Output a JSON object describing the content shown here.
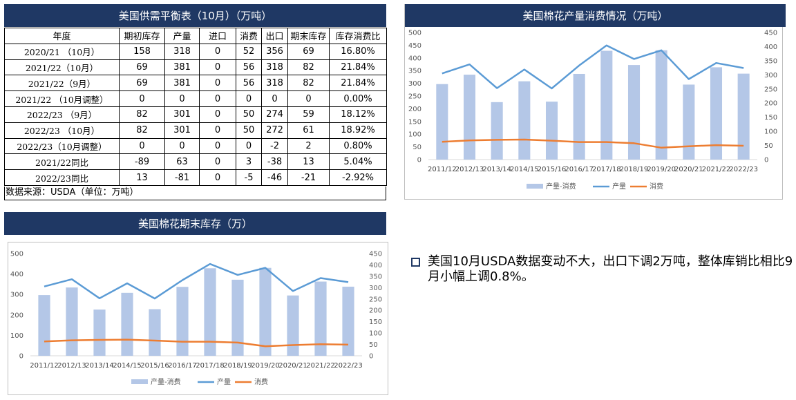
{
  "table_panel": {
    "title": "美国供需平衡表（10月）（万吨）",
    "headers": [
      "年度",
      "期初库存",
      "产量",
      "进口",
      "消费",
      "出口",
      "期末库存",
      "库存消费比"
    ],
    "rows": [
      [
        "2020/21 （10月）",
        "158",
        "318",
        "0",
        "52",
        "356",
        "69",
        "16.80%"
      ],
      [
        "2021/22（10月）",
        "69",
        "381",
        "0",
        "56",
        "318",
        "82",
        "21.84%"
      ],
      [
        "2021/22（9月）",
        "69",
        "381",
        "0",
        "56",
        "318",
        "82",
        "21.84%"
      ],
      [
        "2021/22 （10月调整）",
        "0",
        "0",
        "0",
        "0",
        "0",
        "0",
        "0.00%"
      ],
      [
        "2022/23 （9月）",
        "82",
        "301",
        "0",
        "50",
        "274",
        "59",
        "18.12%"
      ],
      [
        "2022/23 （10月）",
        "82",
        "301",
        "0",
        "50",
        "272",
        "61",
        "18.92%"
      ],
      [
        "2022/23（10月调整）",
        "0",
        "0",
        "0",
        "0",
        "-2",
        "2",
        "0.80%"
      ],
      [
        "2021/22同比",
        "-89",
        "63",
        "0",
        "3",
        "-38",
        "13",
        "5.04%"
      ],
      [
        "2022/23同比",
        "13",
        "-81",
        "0",
        "-5",
        "-46",
        "-21",
        "-2.92%"
      ]
    ],
    "source": "数据来源：USDA（单位：万吨）"
  },
  "chart_panels": [
    {
      "title": "美国棉花产量消费情况（万吨）"
    },
    {
      "title": "美国棉花期末库存（万）"
    }
  ],
  "note": "美国10月USDA数据变动不大，出口下调2万吨，整体库销比相比9月小幅上调0.8%。",
  "colors": {
    "bar": "#b4c7e7",
    "production": "#5b9bd5",
    "consumption": "#ed7d31",
    "title_bg": "#1f3864"
  },
  "chart_data": [
    {
      "type": "bar",
      "categories": [
        "2011/12",
        "2012/13",
        "2013/14",
        "2014/15",
        "2015/16",
        "2016/17",
        "2017/18",
        "2018/19",
        "2019/20",
        "2020/21",
        "2021/22",
        "2022/23"
      ],
      "series": [
        {
          "name": "产量-消费",
          "type": "bar",
          "axis": "left",
          "values": [
            297,
            334,
            226,
            308,
            228,
            337,
            428,
            372,
            430,
            295,
            363,
            338
          ]
        },
        {
          "name": "产量",
          "type": "line",
          "axis": "right",
          "values": [
            305,
            337,
            253,
            319,
            252,
            333,
            404,
            356,
            387,
            285,
            342,
            324
          ]
        },
        {
          "name": "消费",
          "type": "line",
          "axis": "right",
          "values": [
            63,
            68,
            70,
            71,
            67,
            62,
            62,
            58,
            42,
            47,
            51,
            49
          ]
        }
      ],
      "left_ylim": [
        0,
        500
      ],
      "left_ticks": [
        "0",
        "50",
        "100",
        "150",
        "200",
        "250",
        "300",
        "350",
        "400",
        "450",
        "500"
      ],
      "right_ylim": [
        0,
        450
      ],
      "right_ticks": [
        "0",
        "50",
        "100",
        "150",
        "200",
        "250",
        "300",
        "350",
        "400",
        "450"
      ],
      "legend": "bottom",
      "grid": false
    },
    {
      "type": "bar",
      "categories": [
        "2011/12",
        "2012/13",
        "2013/14",
        "2014/15",
        "2015/16",
        "2016/17",
        "2017/18",
        "2018/19",
        "2019/20",
        "2020/21",
        "2021/22",
        "2022/23"
      ],
      "series": [
        {
          "name": "产量-消费",
          "type": "bar",
          "axis": "left",
          "values": [
            297,
            334,
            226,
            308,
            228,
            337,
            428,
            372,
            430,
            295,
            363,
            338
          ]
        },
        {
          "name": "产量",
          "type": "line",
          "axis": "right",
          "values": [
            305,
            337,
            253,
            319,
            252,
            333,
            404,
            356,
            387,
            285,
            342,
            324
          ]
        },
        {
          "name": "消费",
          "type": "line",
          "axis": "right",
          "values": [
            63,
            68,
            70,
            71,
            67,
            62,
            62,
            58,
            42,
            47,
            51,
            49
          ]
        }
      ],
      "left_ylim": [
        0,
        500
      ],
      "left_ticks": [
        "0",
        "100",
        "200",
        "300",
        "400",
        "500"
      ],
      "right_ylim": [
        0,
        450
      ],
      "right_ticks": [
        "0",
        "50",
        "100",
        "150",
        "200",
        "250",
        "300",
        "350",
        "400",
        "450"
      ],
      "legend": "bottom",
      "grid": false
    }
  ]
}
